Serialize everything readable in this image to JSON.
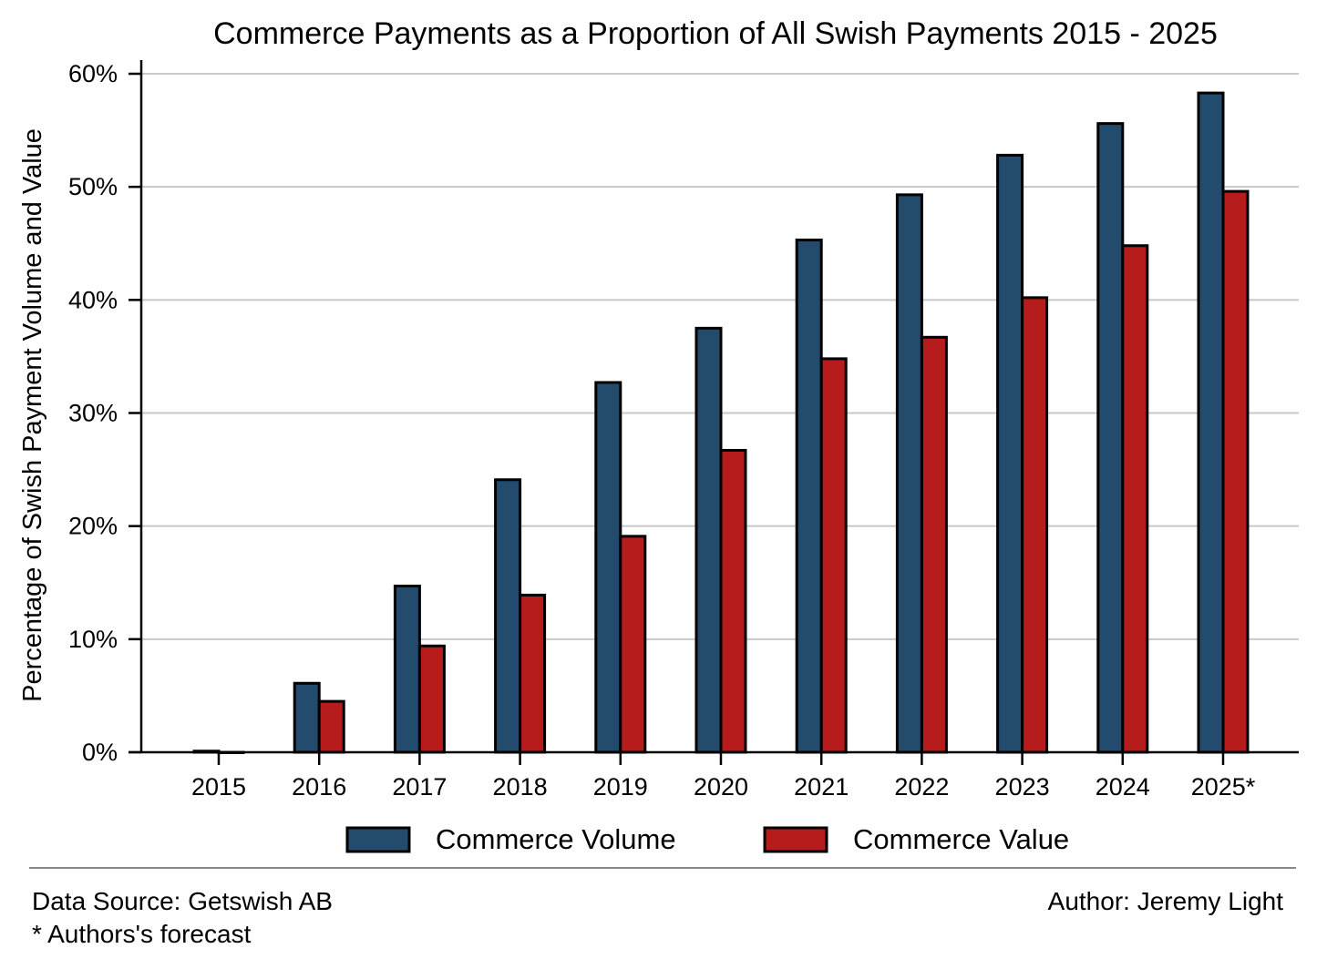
{
  "chart_data": {
    "type": "bar",
    "title": "Commerce Payments as a Proportion of All Swish Payments 2015 - 2025",
    "xlabel": "",
    "ylabel": "Percentage of Swish Payment Volume and Value",
    "ylim": [
      0,
      60
    ],
    "yticks": [
      0,
      10,
      20,
      30,
      40,
      50,
      60
    ],
    "ytick_labels": [
      "0%",
      "10%",
      "20%",
      "30%",
      "40%",
      "50%",
      "60%"
    ],
    "grid": "horizontal",
    "legend": "bottom",
    "categories": [
      "2015",
      "2016",
      "2017",
      "2018",
      "2019",
      "2020",
      "2021",
      "2022",
      "2023",
      "2024",
      "2025*"
    ],
    "series": [
      {
        "name": "Commerce Volume",
        "color": "#234B6E",
        "values": [
          0.1,
          6.1,
          14.7,
          24.1,
          32.7,
          37.5,
          45.3,
          49.3,
          52.8,
          55.6,
          58.3
        ]
      },
      {
        "name": "Commerce Value",
        "color": "#B71C1C",
        "values": [
          0.0,
          4.5,
          9.4,
          13.9,
          19.1,
          26.7,
          34.8,
          36.7,
          40.2,
          44.8,
          49.6
        ]
      }
    ]
  },
  "footer": {
    "source": "Data Source: Getswish AB",
    "note": "* Authors's forecast",
    "author": "Author: Jeremy Light"
  }
}
